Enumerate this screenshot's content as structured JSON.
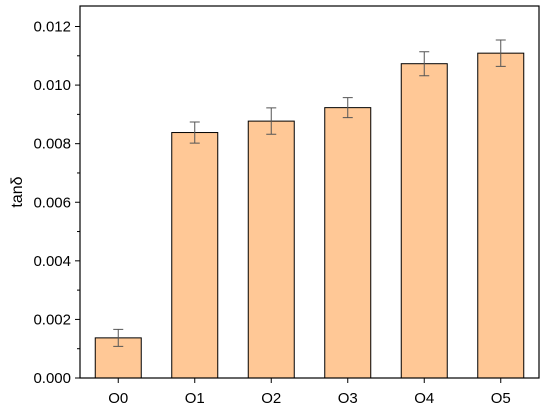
{
  "chart_data": {
    "type": "bar",
    "categories": [
      "O0",
      "O1",
      "O2",
      "O3",
      "O4",
      "O5"
    ],
    "values": [
      0.00137,
      0.00838,
      0.00877,
      0.00923,
      0.01073,
      0.01109
    ],
    "errors": [
      0.00029,
      0.00036,
      0.00045,
      0.00034,
      0.00041,
      0.00045
    ],
    "xlabel": "",
    "ylabel": "tanδ",
    "ylim": [
      0,
      0.0127
    ],
    "yticks": [
      "0.000",
      "0.002",
      "0.004",
      "0.006",
      "0.008",
      "0.010",
      "0.012"
    ],
    "ytick_values": [
      0,
      0.002,
      0.004,
      0.006,
      0.008,
      0.01,
      0.012
    ],
    "grid": false,
    "colors": {
      "bar_fill": "#FFC896",
      "bar_stroke": "#000000",
      "error_bar": "#555555"
    }
  }
}
